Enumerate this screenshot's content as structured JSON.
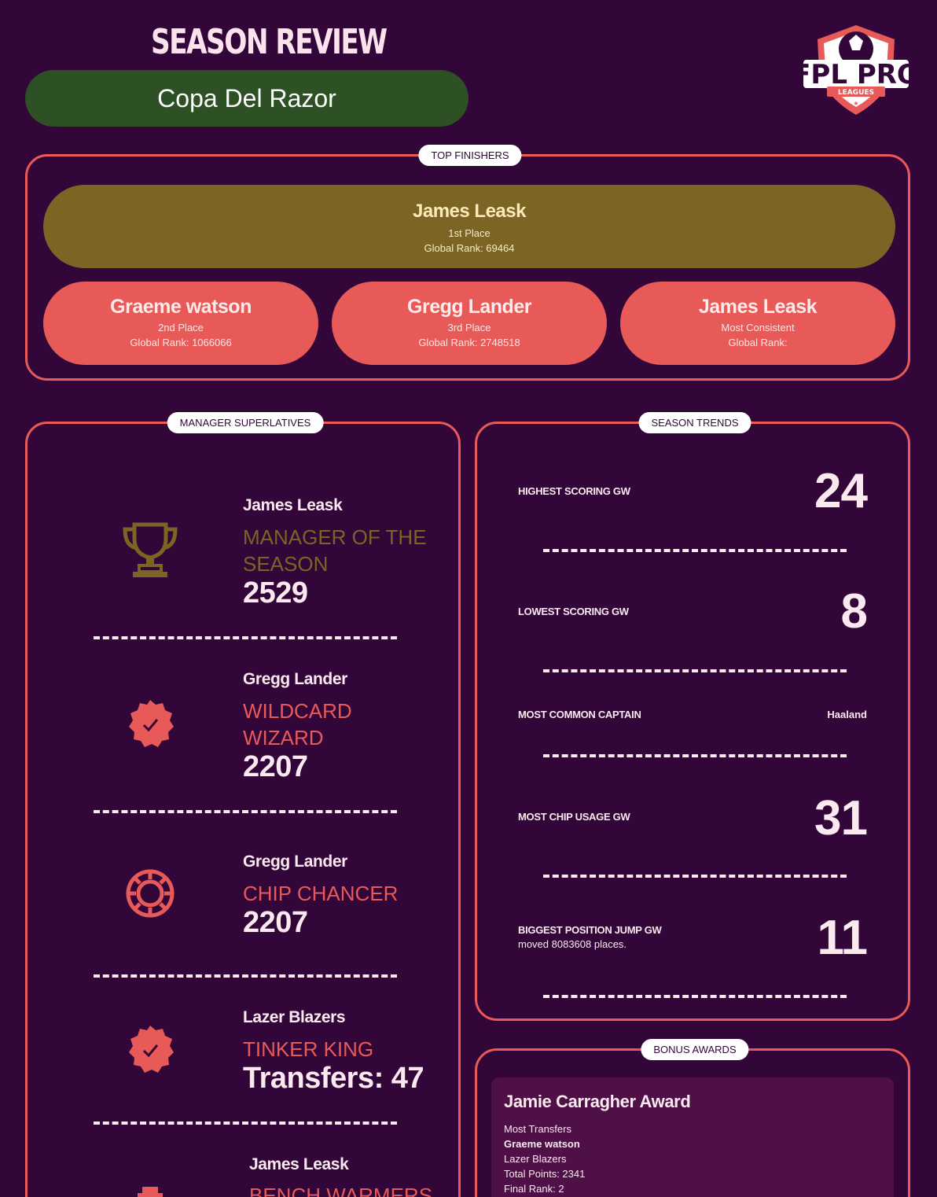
{
  "header": {
    "title": "SEASON REVIEW",
    "league_name": "Copa Del Razor",
    "logo_text": "FPL PRO",
    "logo_sub": "LEAGUES"
  },
  "top_finishers": {
    "tag": "TOP FINISHERS",
    "first": {
      "name": "James Leask",
      "place": "1st Place",
      "rank": "Global Rank: 69464"
    },
    "others": [
      {
        "name": "Graeme watson",
        "place": "2nd Place",
        "rank": "Global Rank: 1066066"
      },
      {
        "name": "Gregg Lander",
        "place": "3rd Place",
        "rank": "Global Rank: 2748518"
      },
      {
        "name": "James Leask",
        "place": "Most Consistent",
        "rank": "Global Rank:"
      }
    ]
  },
  "superlatives": {
    "tag": "MANAGER SUPERLATIVES",
    "items": [
      {
        "icon": "trophy-icon",
        "manager": "James Leask",
        "award": "MANAGER OF THE SEASON",
        "value": "2529"
      },
      {
        "icon": "verified-badge-icon",
        "manager": "Gregg Lander",
        "award": "WILDCARD WIZARD",
        "value": "2207"
      },
      {
        "icon": "poker-chip-icon",
        "manager": "Gregg Lander",
        "award": "CHIP CHANCER",
        "value": "2207"
      },
      {
        "icon": "verified-badge-icon",
        "manager": "Lazer Blazers",
        "award": "TINKER KING",
        "value": "Transfers: 47"
      },
      {
        "icon": "bench-icon",
        "manager": "James Leask",
        "award": "BENCH WARMERS",
        "value": ""
      }
    ]
  },
  "trends": {
    "tag": "SEASON TRENDS",
    "items": [
      {
        "label": "HIGHEST SCORING GW",
        "value": "24",
        "sub": ""
      },
      {
        "label": "LOWEST SCORING GW",
        "value": "8",
        "sub": ""
      },
      {
        "label": "MOST COMMON CAPTAIN",
        "value": "Haaland",
        "sub": ""
      },
      {
        "label": "MOST CHIP USAGE GW",
        "value": "31",
        "sub": ""
      },
      {
        "label": "BIGGEST POSITION JUMP GW",
        "value": "11",
        "sub": "moved 8083608 places."
      }
    ]
  },
  "bonus": {
    "tag": "BONUS AWARDS",
    "card": {
      "title": "Jamie Carragher Award",
      "category": "Most Transfers",
      "manager": "Graeme watson",
      "team": "Lazer Blazers",
      "points": "Total Points: 2341",
      "rank": "Final Rank: 2"
    }
  },
  "colors": {
    "background": "#33063a",
    "accent": "#e85a57",
    "gold": "#7b6424",
    "league_green": "#2d5125"
  }
}
